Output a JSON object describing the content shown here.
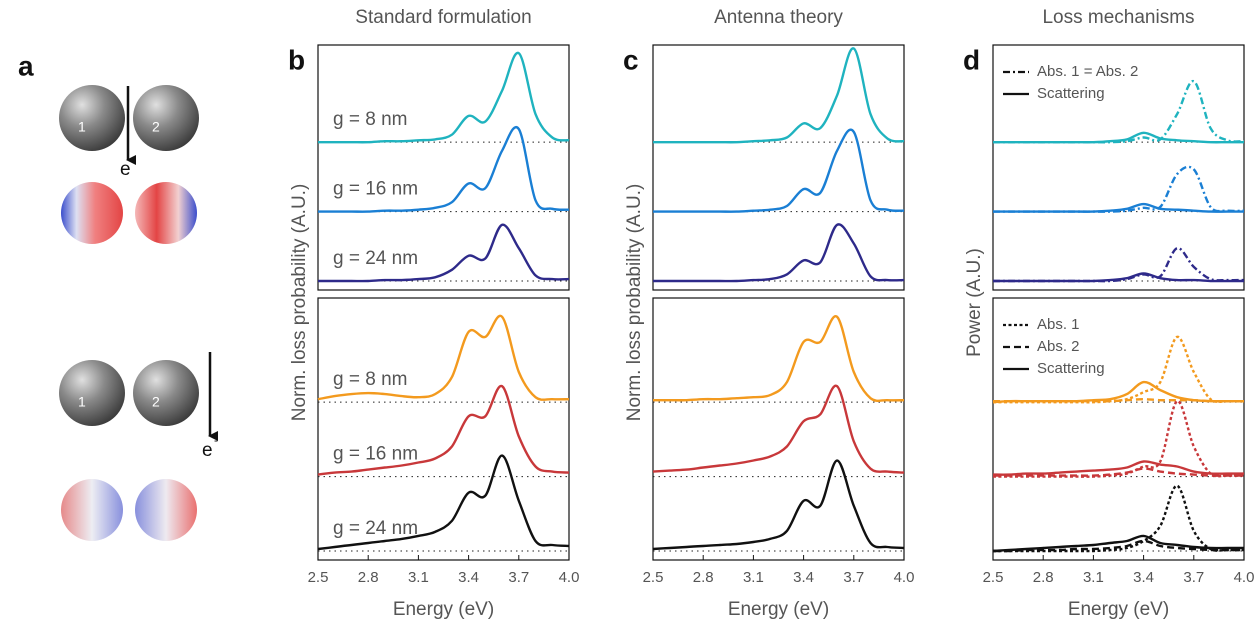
{
  "panel_a": {
    "letter": "a",
    "top": {
      "spheres": [
        "1",
        "2"
      ],
      "electron": "e",
      "charge": "-"
    },
    "bottom": {
      "spheres": [
        "1",
        "2"
      ],
      "electron": "e",
      "charge": "-"
    }
  },
  "chart_data": [
    {
      "type": "line",
      "panel": "b",
      "title": "Standard formulation",
      "xlabel": "Energy (eV)",
      "ylabel": "Norm. loss probability (A.U.)",
      "x": [
        2.5,
        2.6,
        2.7,
        2.8,
        2.9,
        3.0,
        3.1,
        3.2,
        3.3,
        3.4,
        3.5,
        3.6,
        3.7,
        3.8,
        3.9,
        4.0
      ],
      "xlim": [
        2.5,
        4.0
      ],
      "xticks": [
        2.5,
        2.8,
        3.1,
        3.4,
        3.7,
        {
          "value": 4.0,
          "label": "4.0"
        }
      ],
      "subplots": [
        {
          "series": [
            {
              "name": "g = 8 nm",
              "color": "#1fb3bf",
              "style": "solid",
              "values": [
                0,
                0,
                0,
                0,
                0.01,
                0.01,
                0.02,
                0.03,
                0.08,
                0.28,
                0.22,
                0.55,
                0.95,
                0.3,
                0.05,
                0.02
              ]
            },
            {
              "name": "g = 16 nm",
              "color": "#1a7fd4",
              "style": "solid",
              "values": [
                0,
                0,
                0,
                0,
                0.01,
                0.01,
                0.02,
                0.04,
                0.1,
                0.3,
                0.25,
                0.65,
                0.88,
                0.12,
                0.03,
                0.02
              ]
            },
            {
              "name": "g = 24 nm",
              "color": "#2e2a8a",
              "style": "solid",
              "values": [
                0,
                0,
                0,
                0,
                0.01,
                0.01,
                0.02,
                0.04,
                0.12,
                0.27,
                0.24,
                0.6,
                0.35,
                0.06,
                0.02,
                0.02
              ]
            }
          ]
        },
        {
          "series": [
            {
              "name": "g = 8 nm",
              "color": "#f39a1e",
              "style": "solid",
              "values": [
                0.03,
                0.06,
                0.08,
                0.09,
                0.08,
                0.06,
                0.05,
                0.08,
                0.25,
                0.7,
                0.65,
                0.85,
                0.3,
                0.05,
                0.03,
                0.03
              ]
            },
            {
              "name": "g = 16 nm",
              "color": "#c8383a",
              "style": "solid",
              "values": [
                0.02,
                0.04,
                0.05,
                0.07,
                0.09,
                0.11,
                0.14,
                0.18,
                0.3,
                0.6,
                0.6,
                0.9,
                0.4,
                0.1,
                0.05,
                0.04
              ]
            },
            {
              "name": "g = 24 nm",
              "color": "#111111",
              "style": "solid",
              "values": [
                0.02,
                0.04,
                0.06,
                0.08,
                0.1,
                0.12,
                0.15,
                0.19,
                0.3,
                0.58,
                0.55,
                0.95,
                0.5,
                0.1,
                0.06,
                0.05
              ]
            }
          ]
        }
      ]
    },
    {
      "type": "line",
      "panel": "c",
      "title": "Antenna theory",
      "xlabel": "Energy (eV)",
      "ylabel": "Norm. loss probability (A.U.)",
      "x": [
        2.5,
        2.6,
        2.7,
        2.8,
        2.9,
        3.0,
        3.1,
        3.2,
        3.3,
        3.4,
        3.5,
        3.6,
        3.7,
        3.8,
        3.9,
        4.0
      ],
      "xlim": [
        2.5,
        4.0
      ],
      "xticks": [
        2.5,
        2.8,
        3.1,
        3.4,
        3.7,
        {
          "value": 4.0,
          "label": "4.0"
        }
      ],
      "subplots": [
        {
          "series": [
            {
              "color": "#1fb3bf",
              "style": "solid",
              "values": [
                0,
                0,
                0,
                0,
                0,
                0,
                0.01,
                0.02,
                0.05,
                0.2,
                0.15,
                0.5,
                1.0,
                0.3,
                0.04,
                0.01
              ]
            },
            {
              "color": "#1a7fd4",
              "style": "solid",
              "values": [
                0,
                0,
                0,
                0,
                0,
                0,
                0.01,
                0.02,
                0.06,
                0.24,
                0.2,
                0.65,
                0.85,
                0.12,
                0.02,
                0.01
              ]
            },
            {
              "color": "#2e2a8a",
              "style": "solid",
              "values": [
                0,
                0,
                0,
                0,
                0,
                0,
                0.01,
                0.02,
                0.07,
                0.22,
                0.2,
                0.6,
                0.4,
                0.05,
                0.01,
                0.01
              ]
            }
          ]
        },
        {
          "series": [
            {
              "color": "#f39a1e",
              "style": "solid",
              "values": [
                0.02,
                0.02,
                0.02,
                0.03,
                0.03,
                0.04,
                0.05,
                0.07,
                0.2,
                0.6,
                0.6,
                0.85,
                0.3,
                0.04,
                0.02,
                0.02
              ]
            },
            {
              "color": "#c8383a",
              "style": "solid",
              "values": [
                0.05,
                0.06,
                0.07,
                0.09,
                0.11,
                0.13,
                0.16,
                0.2,
                0.3,
                0.55,
                0.62,
                0.9,
                0.35,
                0.08,
                0.05,
                0.04
              ]
            },
            {
              "color": "#111111",
              "style": "solid",
              "values": [
                0.02,
                0.03,
                0.04,
                0.05,
                0.06,
                0.07,
                0.09,
                0.12,
                0.2,
                0.5,
                0.45,
                0.9,
                0.45,
                0.08,
                0.04,
                0.03
              ]
            }
          ]
        }
      ]
    },
    {
      "type": "line",
      "panel": "d",
      "title": "Loss mechanisms",
      "xlabel": "Energy (eV)",
      "ylabel": "Power (A.U.)",
      "x": [
        2.5,
        2.6,
        2.7,
        2.8,
        2.9,
        3.0,
        3.1,
        3.2,
        3.3,
        3.4,
        3.5,
        3.6,
        3.7,
        3.8,
        3.9,
        4.0
      ],
      "xlim": [
        2.5,
        4.0
      ],
      "xticks": [
        2.5,
        2.8,
        3.1,
        3.4,
        3.7,
        {
          "value": 4.0,
          "label": "4.0"
        }
      ],
      "subplots": [
        {
          "legend": [
            {
              "label": "Abs. 1 = Abs. 2",
              "style": "dashdot"
            },
            {
              "label": "Scattering",
              "style": "solid"
            }
          ],
          "series": [
            {
              "row": 0,
              "color": "#1fb3bf",
              "style": "dashdot",
              "values": [
                0,
                0,
                0,
                0,
                0,
                0,
                0,
                0,
                0.01,
                0.05,
                0.03,
                0.3,
                0.65,
                0.15,
                0.02,
                0.01
              ]
            },
            {
              "row": 0,
              "color": "#1fb3bf",
              "style": "solid",
              "values": [
                0,
                0,
                0,
                0,
                0,
                0,
                0,
                0.01,
                0.03,
                0.1,
                0.04,
                0.02,
                0.01,
                0,
                0,
                0
              ]
            },
            {
              "row": 1,
              "color": "#1a7fd4",
              "style": "dashdot",
              "values": [
                0,
                0,
                0,
                0,
                0,
                0,
                0,
                0,
                0.01,
                0.04,
                0.05,
                0.4,
                0.45,
                0.05,
                0.01,
                0.01
              ]
            },
            {
              "row": 1,
              "color": "#1a7fd4",
              "style": "solid",
              "values": [
                0,
                0,
                0,
                0,
                0,
                0,
                0,
                0.01,
                0.03,
                0.08,
                0.03,
                0.02,
                0.01,
                0,
                0,
                0
              ]
            },
            {
              "row": 2,
              "color": "#2e2a8a",
              "style": "dashdot",
              "values": [
                0,
                0,
                0,
                0,
                0,
                0,
                0,
                0,
                0.02,
                0.07,
                0.05,
                0.35,
                0.15,
                0.02,
                0.01,
                0.01
              ]
            },
            {
              "row": 2,
              "color": "#2e2a8a",
              "style": "solid",
              "values": [
                0,
                0,
                0,
                0,
                0,
                0,
                0,
                0.01,
                0.03,
                0.08,
                0.03,
                0.01,
                0.01,
                0,
                0,
                0
              ]
            }
          ]
        },
        {
          "legend": [
            {
              "label": "Abs. 1",
              "style": "dotted"
            },
            {
              "label": "Abs. 2",
              "style": "dashed"
            },
            {
              "label": "Scattering",
              "style": "solid"
            }
          ],
          "series": [
            {
              "row": 0,
              "color": "#f39a1e",
              "style": "dotted",
              "values": [
                0,
                0,
                0,
                0,
                0,
                0,
                0,
                0.01,
                0.03,
                0.1,
                0.2,
                0.65,
                0.3,
                0.03,
                0.01,
                0.01
              ]
            },
            {
              "row": 0,
              "color": "#f39a1e",
              "style": "dashed",
              "values": [
                0.01,
                0.01,
                0.01,
                0.01,
                0.01,
                0.01,
                0.01,
                0.01,
                0.02,
                0.03,
                0.02,
                0.02,
                0.02,
                0.01,
                0.01,
                0.01
              ]
            },
            {
              "row": 0,
              "color": "#f39a1e",
              "style": "solid",
              "values": [
                0,
                0.01,
                0.01,
                0.01,
                0.01,
                0.01,
                0.02,
                0.03,
                0.08,
                0.2,
                0.12,
                0.05,
                0.02,
                0.01,
                0.01,
                0.01
              ]
            },
            {
              "row": 1,
              "color": "#c8383a",
              "style": "dotted",
              "values": [
                0,
                0,
                0,
                0,
                0,
                0,
                0,
                0.01,
                0.03,
                0.1,
                0.15,
                0.75,
                0.3,
                0.03,
                0.01,
                0.01
              ]
            },
            {
              "row": 1,
              "color": "#c8383a",
              "style": "dashed",
              "values": [
                0.01,
                0.01,
                0.01,
                0.01,
                0.01,
                0.01,
                0.01,
                0.02,
                0.04,
                0.08,
                0.05,
                0.03,
                0.02,
                0.01,
                0.01,
                0.01
              ]
            },
            {
              "row": 1,
              "color": "#c8383a",
              "style": "solid",
              "values": [
                0.02,
                0.02,
                0.03,
                0.03,
                0.04,
                0.05,
                0.06,
                0.07,
                0.09,
                0.15,
                0.12,
                0.1,
                0.05,
                0.03,
                0.03,
                0.03
              ]
            },
            {
              "row": 2,
              "color": "#111111",
              "style": "dotted",
              "values": [
                0,
                0,
                0,
                0,
                0,
                0,
                0,
                0.01,
                0.03,
                0.1,
                0.25,
                0.65,
                0.2,
                0.02,
                0.01,
                0.01
              ]
            },
            {
              "row": 2,
              "color": "#111111",
              "style": "dashed",
              "values": [
                0,
                0,
                0.01,
                0.01,
                0.01,
                0.02,
                0.02,
                0.03,
                0.05,
                0.1,
                0.05,
                0.03,
                0.02,
                0.01,
                0.01,
                0.01
              ]
            },
            {
              "row": 2,
              "color": "#111111",
              "style": "solid",
              "values": [
                0,
                0.01,
                0.02,
                0.03,
                0.04,
                0.05,
                0.06,
                0.08,
                0.1,
                0.15,
                0.08,
                0.06,
                0.04,
                0.03,
                0.03,
                0.03
              ]
            }
          ]
        }
      ]
    }
  ]
}
